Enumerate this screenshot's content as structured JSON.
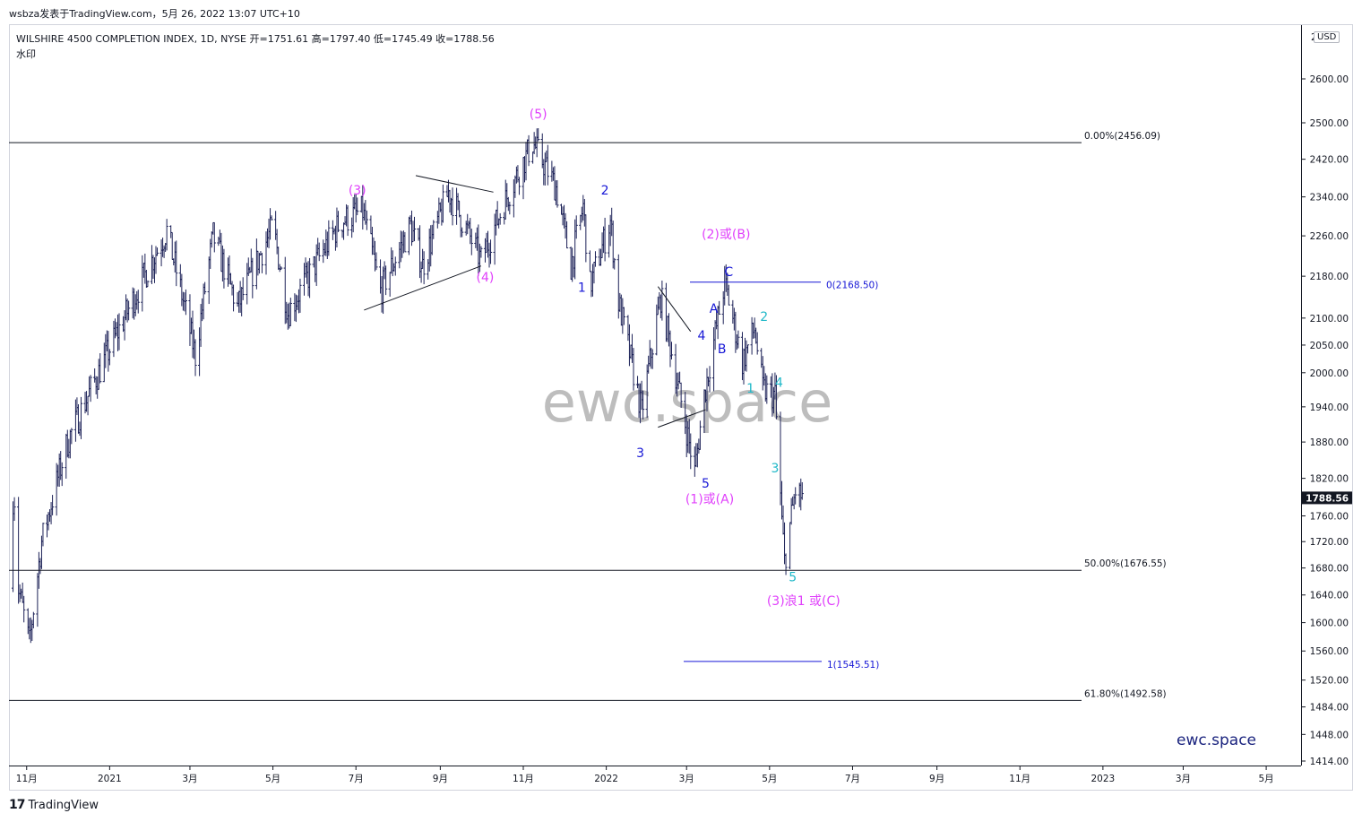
{
  "header": {
    "publish_line": "wsbza发表于TradingView.com，5月 26, 2022 13:07 UTC+10"
  },
  "legend": {
    "symbol_line": "WILSHIRE 4500 COMPLETION INDEX, 1D, NYSE  开=1751.61  高=1797.40  低=1745.49  收=1788.56",
    "watermark_label": "水印"
  },
  "price_axis": {
    "currency": "USD",
    "top_partial": "2",
    "ticks": [
      "2600.00",
      "2500.00",
      "2420.00",
      "2340.00",
      "2260.00",
      "2180.00",
      "2100.00",
      "2050.00",
      "2000.00",
      "1940.00",
      "1880.00",
      "1820.00",
      "1760.00",
      "1720.00",
      "1680.00",
      "1640.00",
      "1600.00",
      "1560.00",
      "1520.00",
      "1484.00",
      "1448.00",
      "1414.00"
    ],
    "last_price": "1788.56"
  },
  "time_axis": {
    "ticks": [
      "11月",
      "2021",
      "3月",
      "5月",
      "7月",
      "9月",
      "11月",
      "2022",
      "3月",
      "5月",
      "7月",
      "9月",
      "11月",
      "2023",
      "3月",
      "5月"
    ]
  },
  "watermark_text": "ewc.space",
  "brand_text": "ewc.space",
  "footer": {
    "logo": "17",
    "brand": "TradingView"
  },
  "colors": {
    "magenta": "#e040fb",
    "blue": "#1717d6",
    "cyan": "#1fb8c8",
    "candle": "#1c2157",
    "line": "#131722"
  },
  "chart_data": {
    "type": "candlestick",
    "title": "WILSHIRE 4500 COMPLETION INDEX, 1D, NYSE",
    "last": {
      "open": 1751.61,
      "high": 1797.4,
      "low": 1745.49,
      "close": 1788.56
    },
    "x_range": [
      "2020-10",
      "2023-06"
    ],
    "ylim": [
      1400,
      2680
    ],
    "scale": "log",
    "close_path": [
      {
        "d": "2020-10-26",
        "v": 1650
      },
      {
        "d": "2020-11-03",
        "v": 1570
      },
      {
        "d": "2020-11-12",
        "v": 1720
      },
      {
        "d": "2020-12-01",
        "v": 1880
      },
      {
        "d": "2020-12-20",
        "v": 1980
      },
      {
        "d": "2021-01-10",
        "v": 2090
      },
      {
        "d": "2021-02-12",
        "v": 2270
      },
      {
        "d": "2021-03-05",
        "v": 2030
      },
      {
        "d": "2021-03-18",
        "v": 2260
      },
      {
        "d": "2021-04-05",
        "v": 2120
      },
      {
        "d": "2021-05-01",
        "v": 2280
      },
      {
        "d": "2021-05-12",
        "v": 2110
      },
      {
        "d": "2021-06-20",
        "v": 2290
      },
      {
        "d": "2021-07-06",
        "v": 2310
      },
      {
        "d": "2021-07-19",
        "v": 2150
      },
      {
        "d": "2021-08-10",
        "v": 2280
      },
      {
        "d": "2021-08-19",
        "v": 2200
      },
      {
        "d": "2021-09-07",
        "v": 2350
      },
      {
        "d": "2021-10-01",
        "v": 2210
      },
      {
        "d": "2021-10-20",
        "v": 2340
      },
      {
        "d": "2021-11-08",
        "v": 2456
      },
      {
        "d": "2021-11-25",
        "v": 2360
      },
      {
        "d": "2021-12-06",
        "v": 2200
      },
      {
        "d": "2021-12-15",
        "v": 2320
      },
      {
        "d": "2021-12-20",
        "v": 2160
      },
      {
        "d": "2022-01-04",
        "v": 2290
      },
      {
        "d": "2022-01-10",
        "v": 2130
      },
      {
        "d": "2022-01-27",
        "v": 1930
      },
      {
        "d": "2022-02-10",
        "v": 2140
      },
      {
        "d": "2022-02-24",
        "v": 1960
      },
      {
        "d": "2022-03-07",
        "v": 1830
      },
      {
        "d": "2022-03-14",
        "v": 1960
      },
      {
        "d": "2022-03-29",
        "v": 2168
      },
      {
        "d": "2022-04-11",
        "v": 2020
      },
      {
        "d": "2022-04-20",
        "v": 2080
      },
      {
        "d": "2022-04-26",
        "v": 1970
      },
      {
        "d": "2022-05-05",
        "v": 1960
      },
      {
        "d": "2022-05-10",
        "v": 1750
      },
      {
        "d": "2022-05-12",
        "v": 1690
      },
      {
        "d": "2022-05-20",
        "v": 1800
      },
      {
        "d": "2022-05-25",
        "v": 1788.56
      }
    ],
    "fib_levels": [
      {
        "label": "0.00%(2456.09)",
        "value": 2456.09
      },
      {
        "label": "50.00%(1676.55)",
        "value": 1676.55
      },
      {
        "label": "61.80%(1492.58)",
        "value": 1492.58
      }
    ],
    "projection_levels": [
      {
        "label": "0(2168.50)",
        "value": 2168.5
      },
      {
        "label": "1(1545.51)",
        "value": 1545.51
      }
    ],
    "wave_labels": [
      {
        "text": "(3)",
        "color": "magenta"
      },
      {
        "text": "(4)",
        "color": "magenta"
      },
      {
        "text": "(5)",
        "color": "magenta"
      },
      {
        "text": "(2)或(B)",
        "color": "magenta"
      },
      {
        "text": "(1)或(A)",
        "color": "magenta"
      },
      {
        "text": "(3)浪1 或(C)",
        "color": "magenta"
      },
      {
        "text": "1",
        "color": "blue"
      },
      {
        "text": "2",
        "color": "blue"
      },
      {
        "text": "3",
        "color": "blue"
      },
      {
        "text": "4",
        "color": "blue"
      },
      {
        "text": "5",
        "color": "blue"
      },
      {
        "text": "A",
        "color": "blue"
      },
      {
        "text": "B",
        "color": "blue"
      },
      {
        "text": "C",
        "color": "blue"
      },
      {
        "text": "1",
        "color": "cyan"
      },
      {
        "text": "2",
        "color": "cyan"
      },
      {
        "text": "3",
        "color": "cyan"
      },
      {
        "text": "4",
        "color": "cyan"
      },
      {
        "text": "5",
        "color": "cyan"
      }
    ]
  }
}
